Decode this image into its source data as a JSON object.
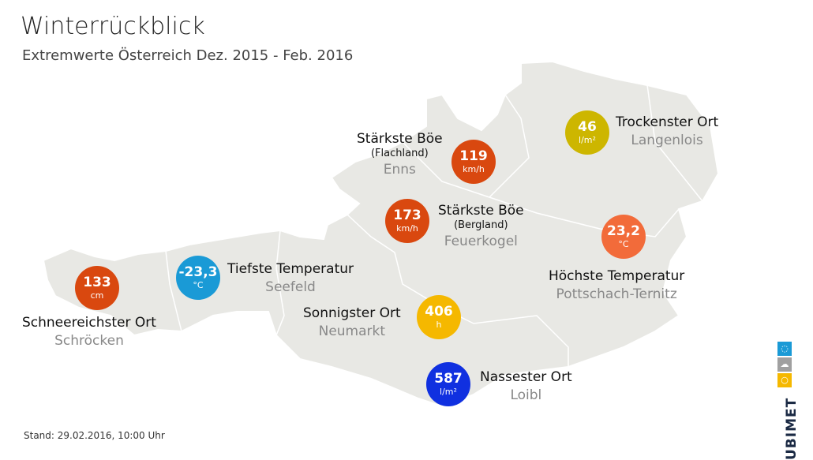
{
  "header": {
    "title": "Winterrückblick",
    "subtitle": "Extremwerte Österreich Dez. 2015 - Feb. 2016"
  },
  "footer": {
    "stand": "Stand: 29.02.2016, 10:00 Uhr"
  },
  "logo": {
    "text": "UBIMET",
    "icons": [
      "drop-icon",
      "cloud-icon",
      "sun-icon"
    ],
    "colors": [
      "#1a9ad6",
      "#a0a0a0",
      "#f5b800"
    ]
  },
  "map": {
    "fill": "#e8e8e4",
    "stroke": "#ffffff"
  },
  "records": [
    {
      "value": "133",
      "unit": "cm",
      "title": "Schneereichster Ort",
      "sub": "",
      "place": "Schröcken",
      "color": "#d9480f"
    },
    {
      "value": "-23,3",
      "unit": "°C",
      "title": "Tiefste Temperatur",
      "sub": "",
      "place": "Seefeld",
      "color": "#1a9ad6"
    },
    {
      "value": "119",
      "unit": "km/h",
      "title": "Stärkste Böe",
      "sub": "(Flachland)",
      "place": "Enns",
      "color": "#d9480f"
    },
    {
      "value": "173",
      "unit": "km/h",
      "title": "Stärkste Böe",
      "sub": "(Bergland)",
      "place": "Feuerkogel",
      "color": "#d9480f"
    },
    {
      "value": "46",
      "unit": "l/m²",
      "title": "Trockenster Ort",
      "sub": "",
      "place": "Langenlois",
      "color": "#cdb600"
    },
    {
      "value": "23,2",
      "unit": "°C",
      "title": "Höchste Temperatur",
      "sub": "",
      "place": "Pottschach-Ternitz",
      "color": "#f26b3a"
    },
    {
      "value": "406",
      "unit": "h",
      "title": "Sonnigster Ort",
      "sub": "",
      "place": "Neumarkt",
      "color": "#f5b800"
    },
    {
      "value": "587",
      "unit": "l/m²",
      "title": "Nassester Ort",
      "sub": "",
      "place": "Loibl",
      "color": "#1030e0"
    }
  ]
}
